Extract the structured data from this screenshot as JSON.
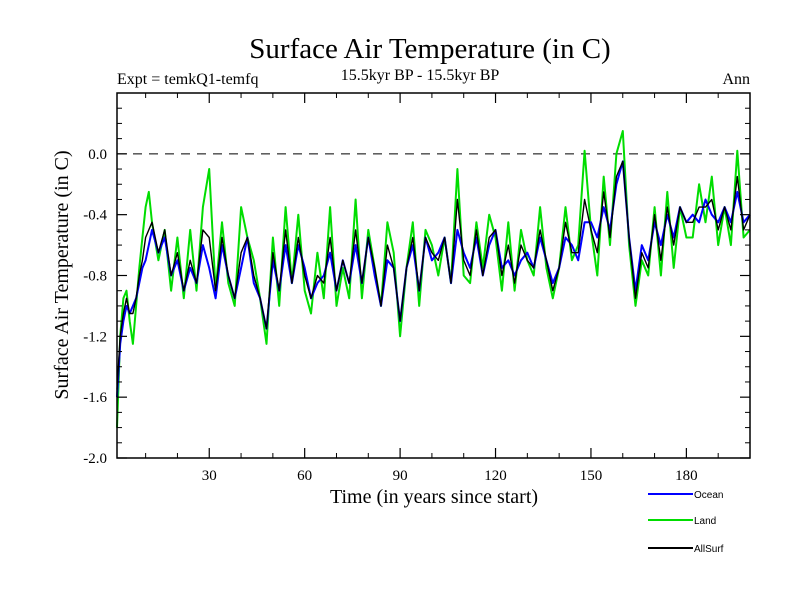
{
  "chart_data": {
    "type": "line",
    "title": "Surface Air Temperature (in C)",
    "subtitle_left": "Expt = temkQ1-temfq",
    "subtitle_center": "15.5kyr BP - 15.5kyr BP",
    "subtitle_right": "Ann",
    "xlabel": "Time (in years since start)",
    "ylabel": "Surface Air Temperature (in C)",
    "xlim": [
      1,
      200
    ],
    "ylim": [
      -2.0,
      0.4
    ],
    "x_ticks": [
      {
        "value": 30,
        "label": "30"
      },
      {
        "value": 60,
        "label": "60"
      },
      {
        "value": 90,
        "label": "90"
      },
      {
        "value": 120,
        "label": "120"
      },
      {
        "value": 150,
        "label": "150"
      },
      {
        "value": 180,
        "label": "180"
      }
    ],
    "y_ticks": [
      {
        "value": -2.0,
        "label": "-2.0"
      },
      {
        "value": -1.6,
        "label": "-1.6"
      },
      {
        "value": -1.2,
        "label": "-1.2"
      },
      {
        "value": -0.8,
        "label": "-0.8"
      },
      {
        "value": -0.4,
        "label": "-0.4"
      },
      {
        "value": 0.0,
        "label": "0.0"
      }
    ],
    "reference_line": 0.0,
    "legend_position": "bottom-right, below plot",
    "series": [
      {
        "name": "Ocean",
        "color": "#0000ff",
        "x": [
          1,
          2,
          3,
          4,
          5,
          6,
          7,
          8,
          9,
          10,
          11,
          12,
          14,
          16,
          18,
          20,
          22,
          24,
          26,
          28,
          30,
          32,
          34,
          36,
          38,
          40,
          42,
          44,
          46,
          48,
          50,
          52,
          54,
          56,
          58,
          60,
          62,
          64,
          66,
          68,
          70,
          72,
          74,
          76,
          78,
          80,
          82,
          84,
          86,
          88,
          90,
          92,
          94,
          96,
          98,
          100,
          102,
          104,
          106,
          108,
          110,
          112,
          114,
          116,
          118,
          120,
          122,
          124,
          126,
          128,
          130,
          132,
          134,
          136,
          138,
          140,
          142,
          144,
          146,
          148,
          150,
          152,
          154,
          156,
          158,
          160,
          162,
          164,
          166,
          168,
          170,
          172,
          174,
          176,
          178,
          180,
          182,
          184,
          186,
          188,
          190,
          192,
          194,
          196,
          198,
          200
        ],
        "values": [
          -1.6,
          -1.25,
          -1.1,
          -1.0,
          -1.05,
          -1.0,
          -0.95,
          -0.85,
          -0.75,
          -0.7,
          -0.6,
          -0.5,
          -0.65,
          -0.55,
          -0.8,
          -0.7,
          -0.9,
          -0.75,
          -0.85,
          -0.6,
          -0.75,
          -0.95,
          -0.6,
          -0.8,
          -0.95,
          -0.75,
          -0.55,
          -0.85,
          -0.95,
          -1.15,
          -0.7,
          -0.9,
          -0.6,
          -0.85,
          -0.6,
          -0.75,
          -0.95,
          -0.85,
          -0.8,
          -0.65,
          -0.9,
          -0.7,
          -0.85,
          -0.6,
          -0.85,
          -0.55,
          -0.8,
          -1.0,
          -0.7,
          -0.75,
          -1.1,
          -0.75,
          -0.6,
          -0.9,
          -0.55,
          -0.7,
          -0.65,
          -0.55,
          -0.85,
          -0.5,
          -0.65,
          -0.75,
          -0.55,
          -0.8,
          -0.6,
          -0.5,
          -0.75,
          -0.7,
          -0.8,
          -0.7,
          -0.65,
          -0.75,
          -0.55,
          -0.7,
          -0.85,
          -0.75,
          -0.55,
          -0.6,
          -0.7,
          -0.45,
          -0.45,
          -0.55,
          -0.35,
          -0.5,
          -0.2,
          -0.05,
          -0.55,
          -0.9,
          -0.6,
          -0.7,
          -0.45,
          -0.6,
          -0.4,
          -0.55,
          -0.35,
          -0.45,
          -0.4,
          -0.45,
          -0.3,
          -0.4,
          -0.45,
          -0.35,
          -0.45,
          -0.25,
          -0.45,
          -0.4
        ]
      },
      {
        "name": "Land",
        "color": "#00dd00",
        "x": [
          1,
          2,
          3,
          4,
          5,
          6,
          7,
          8,
          9,
          10,
          11,
          12,
          14,
          16,
          18,
          20,
          22,
          24,
          26,
          28,
          30,
          32,
          34,
          36,
          38,
          40,
          42,
          44,
          46,
          48,
          50,
          52,
          54,
          56,
          58,
          60,
          62,
          64,
          66,
          68,
          70,
          72,
          74,
          76,
          78,
          80,
          82,
          84,
          86,
          88,
          90,
          92,
          94,
          96,
          98,
          100,
          102,
          104,
          106,
          108,
          110,
          112,
          114,
          116,
          118,
          120,
          122,
          124,
          126,
          128,
          130,
          132,
          134,
          136,
          138,
          140,
          142,
          144,
          146,
          148,
          150,
          152,
          154,
          156,
          158,
          160,
          162,
          164,
          166,
          168,
          170,
          172,
          174,
          176,
          178,
          180,
          182,
          184,
          186,
          188,
          190,
          192,
          194,
          196,
          198,
          200
        ],
        "values": [
          -1.8,
          -1.2,
          -0.95,
          -0.9,
          -1.1,
          -1.25,
          -1.0,
          -0.75,
          -0.55,
          -0.35,
          -0.25,
          -0.45,
          -0.7,
          -0.5,
          -0.9,
          -0.55,
          -0.95,
          -0.5,
          -0.9,
          -0.35,
          -0.1,
          -0.9,
          -0.45,
          -0.85,
          -1.0,
          -0.35,
          -0.55,
          -0.7,
          -0.95,
          -1.25,
          -0.55,
          -1.0,
          -0.35,
          -0.85,
          -0.4,
          -0.9,
          -1.05,
          -0.65,
          -0.95,
          -0.35,
          -1.0,
          -0.75,
          -0.95,
          -0.3,
          -0.95,
          -0.5,
          -0.75,
          -1.0,
          -0.45,
          -0.65,
          -1.2,
          -0.75,
          -0.45,
          -1.0,
          -0.5,
          -0.6,
          -0.8,
          -0.55,
          -0.85,
          -0.1,
          -0.8,
          -0.85,
          -0.45,
          -0.75,
          -0.4,
          -0.55,
          -0.9,
          -0.45,
          -0.9,
          -0.5,
          -0.7,
          -0.8,
          -0.35,
          -0.75,
          -0.95,
          -0.75,
          -0.35,
          -0.7,
          -0.6,
          0.02,
          -0.5,
          -0.8,
          -0.15,
          -0.6,
          0.0,
          0.15,
          -0.6,
          -1.0,
          -0.7,
          -0.8,
          -0.35,
          -0.8,
          -0.25,
          -0.75,
          -0.35,
          -0.55,
          -0.55,
          -0.2,
          -0.45,
          -0.15,
          -0.6,
          -0.35,
          -0.6,
          0.02,
          -0.55,
          -0.5
        ]
      },
      {
        "name": "AllSurf",
        "color": "#000000",
        "x": [
          1,
          2,
          3,
          4,
          5,
          6,
          7,
          8,
          9,
          10,
          11,
          12,
          14,
          16,
          18,
          20,
          22,
          24,
          26,
          28,
          30,
          32,
          34,
          36,
          38,
          40,
          42,
          44,
          46,
          48,
          50,
          52,
          54,
          56,
          58,
          60,
          62,
          64,
          66,
          68,
          70,
          72,
          74,
          76,
          78,
          80,
          82,
          84,
          86,
          88,
          90,
          92,
          94,
          96,
          98,
          100,
          102,
          104,
          106,
          108,
          110,
          112,
          114,
          116,
          118,
          120,
          122,
          124,
          126,
          128,
          130,
          132,
          134,
          136,
          138,
          140,
          142,
          144,
          146,
          148,
          150,
          152,
          154,
          156,
          158,
          160,
          162,
          164,
          166,
          168,
          170,
          172,
          174,
          176,
          178,
          180,
          182,
          184,
          186,
          188,
          190,
          192,
          194,
          196,
          198,
          200
        ],
        "values": [
          -1.55,
          -1.2,
          -1.05,
          -0.95,
          -1.05,
          -1.05,
          -0.95,
          -0.8,
          -0.7,
          -0.55,
          -0.5,
          -0.45,
          -0.65,
          -0.5,
          -0.8,
          -0.65,
          -0.9,
          -0.7,
          -0.85,
          -0.5,
          -0.55,
          -0.9,
          -0.55,
          -0.8,
          -0.95,
          -0.65,
          -0.55,
          -0.8,
          -0.95,
          -1.15,
          -0.65,
          -0.9,
          -0.5,
          -0.85,
          -0.55,
          -0.8,
          -0.95,
          -0.8,
          -0.85,
          -0.55,
          -0.9,
          -0.7,
          -0.85,
          -0.5,
          -0.85,
          -0.55,
          -0.75,
          -1.0,
          -0.6,
          -0.75,
          -1.1,
          -0.75,
          -0.55,
          -0.9,
          -0.55,
          -0.65,
          -0.7,
          -0.55,
          -0.85,
          -0.3,
          -0.7,
          -0.8,
          -0.5,
          -0.8,
          -0.55,
          -0.5,
          -0.8,
          -0.6,
          -0.85,
          -0.6,
          -0.7,
          -0.75,
          -0.5,
          -0.7,
          -0.9,
          -0.75,
          -0.45,
          -0.65,
          -0.65,
          -0.3,
          -0.5,
          -0.65,
          -0.25,
          -0.55,
          -0.15,
          -0.05,
          -0.55,
          -0.95,
          -0.65,
          -0.75,
          -0.4,
          -0.7,
          -0.35,
          -0.6,
          -0.35,
          -0.45,
          -0.45,
          -0.35,
          -0.35,
          -0.3,
          -0.5,
          -0.35,
          -0.5,
          -0.15,
          -0.5,
          -0.4
        ]
      }
    ]
  }
}
